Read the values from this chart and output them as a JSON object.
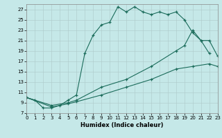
{
  "xlabel": "Humidex (Indice chaleur)",
  "bg_color": "#c5e8e8",
  "grid_color": "#adc8c8",
  "line_color": "#1a6b5a",
  "xlim": [
    0,
    23
  ],
  "ylim": [
    7,
    28
  ],
  "xticks": [
    0,
    1,
    2,
    3,
    4,
    5,
    6,
    7,
    8,
    9,
    10,
    11,
    12,
    13,
    14,
    15,
    16,
    17,
    18,
    19,
    20,
    21,
    22,
    23
  ],
  "yticks": [
    7,
    9,
    11,
    13,
    15,
    17,
    19,
    21,
    23,
    25,
    27
  ],
  "series": [
    {
      "x": [
        0,
        1,
        2,
        3,
        4,
        5,
        6,
        7,
        8,
        9,
        10,
        11,
        12,
        13,
        14,
        15,
        16,
        17,
        18,
        19,
        20,
        21,
        22
      ],
      "y": [
        10,
        9.5,
        8,
        8,
        8.5,
        9.5,
        10.5,
        18.5,
        22,
        24,
        24.5,
        27.5,
        26.5,
        27.5,
        26.5,
        26,
        26.5,
        26,
        26.5,
        25,
        22.5,
        21,
        18.5
      ]
    },
    {
      "x": [
        0,
        3,
        5,
        6,
        9,
        12,
        15,
        18,
        19,
        20,
        21,
        22,
        23
      ],
      "y": [
        10,
        8.5,
        9.0,
        9.5,
        12,
        13.5,
        16,
        19,
        20,
        23,
        21,
        21,
        18
      ]
    },
    {
      "x": [
        0,
        3,
        5,
        6,
        9,
        12,
        15,
        18,
        20,
        22,
        23
      ],
      "y": [
        10,
        8.2,
        8.8,
        9.2,
        10.5,
        12,
        13.5,
        15.5,
        16,
        16.5,
        16
      ]
    }
  ]
}
